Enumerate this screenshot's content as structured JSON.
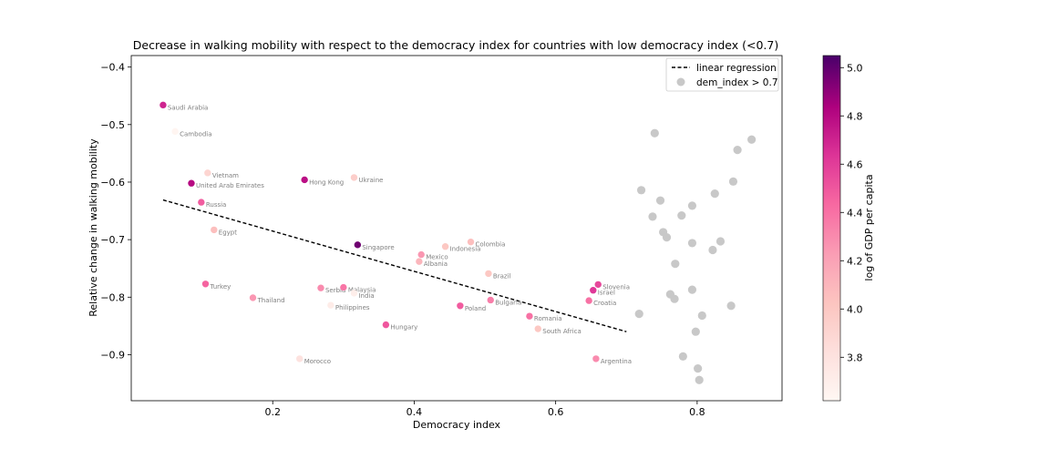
{
  "chart_data": {
    "type": "scatter",
    "title": "Decrease in walking mobility with respect to the democracy index for countries with low democracy index (<0.7)",
    "xlabel": "Democracy index",
    "ylabel": "Relative change in walking mobility",
    "xlim": [
      0.0,
      0.92
    ],
    "ylim": [
      -0.98,
      -0.38
    ],
    "xticks": [
      0.2,
      0.4,
      0.6,
      0.8
    ],
    "yticks": [
      -0.9,
      -0.8,
      -0.7,
      -0.6,
      -0.5,
      -0.4
    ],
    "xtick_labels": [
      "0.2",
      "0.4",
      "0.6",
      "0.8"
    ],
    "ytick_labels": [
      "−0.9",
      "−0.8",
      "−0.7",
      "−0.6",
      "−0.5",
      "−0.4"
    ],
    "grid": false,
    "legend_position": "top-right",
    "legend": [
      {
        "label": "linear regression",
        "kind": "dashed-line",
        "color": "#000000"
      },
      {
        "label": "dem_index > 0.7",
        "kind": "marker",
        "color": "#c8c8c8"
      }
    ],
    "regression": {
      "x": [
        0.045,
        0.7
      ],
      "y": [
        -0.631,
        -0.86
      ]
    },
    "colorbar": {
      "label": "log of GDP per capita",
      "min": 3.62,
      "max": 5.05,
      "ticks": [
        3.8,
        4.0,
        4.2,
        4.4,
        4.6,
        4.8,
        5.0
      ],
      "tick_labels": [
        "3.8",
        "4.0",
        "4.2",
        "4.4",
        "4.6",
        "4.8",
        "5.0"
      ]
    },
    "countries": [
      {
        "name": "Saudi Arabia",
        "x": 0.045,
        "y": -0.466,
        "gdp": 4.7
      },
      {
        "name": "Cambodia",
        "x": 0.062,
        "y": -0.512,
        "gdp": 3.64
      },
      {
        "name": "Vietnam",
        "x": 0.108,
        "y": -0.584,
        "gdp": 3.9
      },
      {
        "name": "United Arab Emirates",
        "x": 0.085,
        "y": -0.602,
        "gdp": 4.8
      },
      {
        "name": "Russia",
        "x": 0.099,
        "y": -0.635,
        "gdp": 4.48
      },
      {
        "name": "Egypt",
        "x": 0.117,
        "y": -0.683,
        "gdp": 4.05
      },
      {
        "name": "Turkey",
        "x": 0.105,
        "y": -0.777,
        "gdp": 4.45
      },
      {
        "name": "Thailand",
        "x": 0.172,
        "y": -0.801,
        "gdp": 4.25
      },
      {
        "name": "Hong Kong",
        "x": 0.245,
        "y": -0.596,
        "gdp": 4.78
      },
      {
        "name": "Ukraine",
        "x": 0.315,
        "y": -0.592,
        "gdp": 3.95
      },
      {
        "name": "Singapore",
        "x": 0.32,
        "y": -0.709,
        "gdp": 4.97
      },
      {
        "name": "Serbia",
        "x": 0.268,
        "y": -0.784,
        "gdp": 4.3
      },
      {
        "name": "Malaysia",
        "x": 0.3,
        "y": -0.783,
        "gdp": 4.38
      },
      {
        "name": "India",
        "x": 0.315,
        "y": -0.793,
        "gdp": 3.7
      },
      {
        "name": "Philippines",
        "x": 0.282,
        "y": -0.814,
        "gdp": 3.72
      },
      {
        "name": "Morocco",
        "x": 0.238,
        "y": -0.907,
        "gdp": 3.8
      },
      {
        "name": "Hungary",
        "x": 0.36,
        "y": -0.848,
        "gdp": 4.5
      },
      {
        "name": "Mexico",
        "x": 0.41,
        "y": -0.726,
        "gdp": 4.25
      },
      {
        "name": "Albania",
        "x": 0.407,
        "y": -0.738,
        "gdp": 4.1
      },
      {
        "name": "Indonesia",
        "x": 0.444,
        "y": -0.712,
        "gdp": 4.0
      },
      {
        "name": "Colombia",
        "x": 0.48,
        "y": -0.704,
        "gdp": 4.05
      },
      {
        "name": "Brazil",
        "x": 0.505,
        "y": -0.759,
        "gdp": 4.0
      },
      {
        "name": "Poland",
        "x": 0.465,
        "y": -0.815,
        "gdp": 4.48
      },
      {
        "name": "Bulgaria",
        "x": 0.508,
        "y": -0.805,
        "gdp": 4.35
      },
      {
        "name": "Romania",
        "x": 0.563,
        "y": -0.833,
        "gdp": 4.4
      },
      {
        "name": "South Africa",
        "x": 0.575,
        "y": -0.855,
        "gdp": 4.0
      },
      {
        "name": "Slovenia",
        "x": 0.66,
        "y": -0.778,
        "gdp": 4.56
      },
      {
        "name": "Israel",
        "x": 0.653,
        "y": -0.788,
        "gdp": 4.62
      },
      {
        "name": "Croatia",
        "x": 0.647,
        "y": -0.806,
        "gdp": 4.4
      },
      {
        "name": "Argentina",
        "x": 0.657,
        "y": -0.907,
        "gdp": 4.3
      }
    ],
    "high_dem_points": [
      {
        "x": 0.74,
        "y": -0.515
      },
      {
        "x": 0.857,
        "y": -0.544
      },
      {
        "x": 0.877,
        "y": -0.526
      },
      {
        "x": 0.851,
        "y": -0.599
      },
      {
        "x": 0.721,
        "y": -0.614
      },
      {
        "x": 0.748,
        "y": -0.632
      },
      {
        "x": 0.793,
        "y": -0.641
      },
      {
        "x": 0.825,
        "y": -0.62
      },
      {
        "x": 0.737,
        "y": -0.66
      },
      {
        "x": 0.778,
        "y": -0.658
      },
      {
        "x": 0.752,
        "y": -0.687
      },
      {
        "x": 0.757,
        "y": -0.696
      },
      {
        "x": 0.793,
        "y": -0.706
      },
      {
        "x": 0.833,
        "y": -0.703
      },
      {
        "x": 0.822,
        "y": -0.718
      },
      {
        "x": 0.769,
        "y": -0.742
      },
      {
        "x": 0.793,
        "y": -0.787
      },
      {
        "x": 0.762,
        "y": -0.795
      },
      {
        "x": 0.768,
        "y": -0.803
      },
      {
        "x": 0.848,
        "y": -0.815
      },
      {
        "x": 0.718,
        "y": -0.829
      },
      {
        "x": 0.807,
        "y": -0.832
      },
      {
        "x": 0.798,
        "y": -0.86
      },
      {
        "x": 0.78,
        "y": -0.903
      },
      {
        "x": 0.801,
        "y": -0.924
      },
      {
        "x": 0.803,
        "y": -0.944
      }
    ]
  }
}
